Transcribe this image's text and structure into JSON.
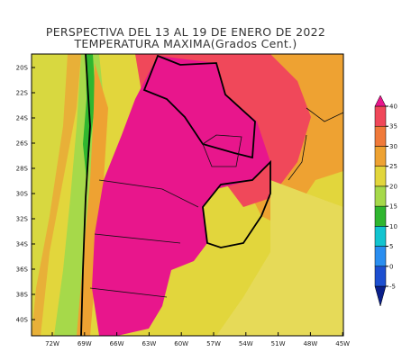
{
  "map": {
    "title": "PERSPECTIVA DEL 13 AL 19 DE ENERO DE 2022",
    "subtitle": "TEMPERATURA MAXIMA(Grados Cent.)",
    "lat_labels": [
      "20S",
      "22S",
      "24S",
      "26S",
      "28S",
      "30S",
      "32S",
      "34S",
      "36S",
      "38S",
      "40S"
    ],
    "lon_labels": [
      "72W",
      "69W",
      "66W",
      "63W",
      "60W",
      "57W",
      "54W",
      "51W",
      "48W",
      "45W"
    ],
    "colorbar": {
      "ticks": [
        -5,
        0,
        5,
        10,
        15,
        20,
        25,
        30,
        35,
        40
      ],
      "colors": [
        "#0a1f8a",
        "#1d4fd0",
        "#2a8ef0",
        "#12c4d0",
        "#2fb62f",
        "#a6d94a",
        "#e2d63c",
        "#eea232",
        "#f07a3a",
        "#f0485a",
        "#e8168c"
      ]
    }
  }
}
